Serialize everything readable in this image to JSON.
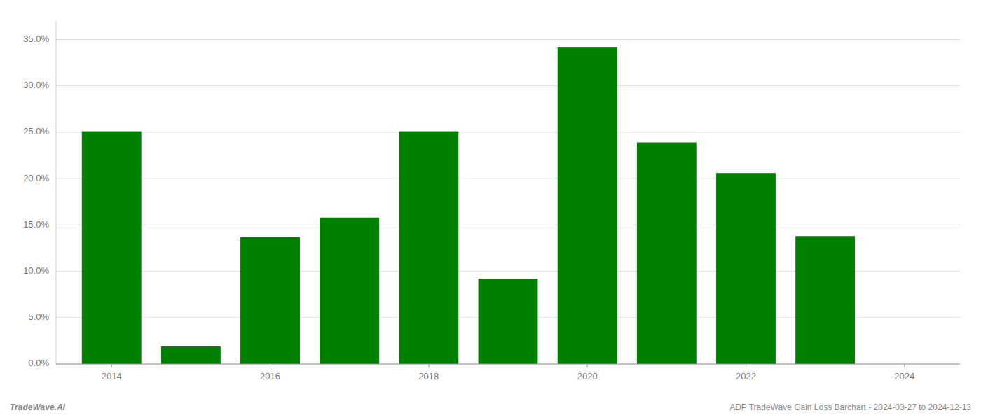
{
  "chart_data": {
    "type": "bar",
    "x": [
      2014,
      2015,
      2016,
      2017,
      2018,
      2019,
      2020,
      2021,
      2022,
      2023
    ],
    "values": [
      0.251,
      0.019,
      0.137,
      0.158,
      0.251,
      0.092,
      0.342,
      0.239,
      0.206,
      0.138
    ],
    "color": "#008000",
    "xlim": [
      2013.3,
      2024.7
    ],
    "xticks": [
      2014,
      2016,
      2018,
      2020,
      2022,
      2024
    ],
    "ylim": [
      0.0,
      0.37
    ],
    "yticks": [
      {
        "value": 0.0,
        "label": "0.0%"
      },
      {
        "value": 0.05,
        "label": "5.0%"
      },
      {
        "value": 0.1,
        "label": "10.0%"
      },
      {
        "value": 0.15,
        "label": "15.0%"
      },
      {
        "value": 0.2,
        "label": "20.0%"
      },
      {
        "value": 0.25,
        "label": "25.0%"
      },
      {
        "value": 0.3,
        "label": "30.0%"
      },
      {
        "value": 0.35,
        "label": "35.0%"
      }
    ],
    "grid": true,
    "annotations": [
      "TradeWave.AI",
      "ADP TradeWave Gain Loss Barchart - 2024-03-27 to 2024-12-13"
    ]
  }
}
